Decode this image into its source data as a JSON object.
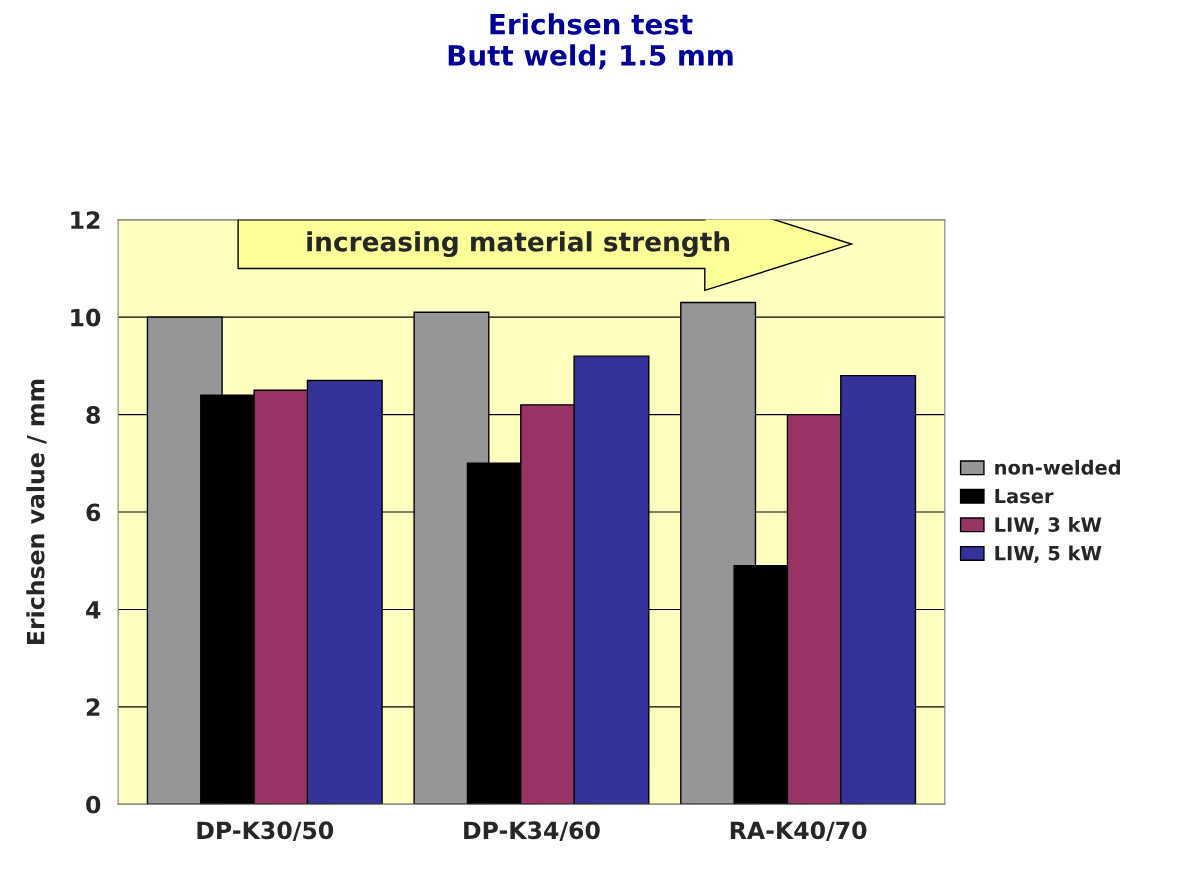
{
  "chart_data": {
    "type": "bar",
    "title": "Erichsen test\nButt weld; 1.5 mm",
    "ylabel": "Erichsen value / mm",
    "categories": [
      "DP-K30/50",
      "DP-K34/60",
      "RA-K40/70"
    ],
    "series": [
      {
        "name": "non-welded",
        "color": "#969696",
        "values": [
          10.0,
          10.1,
          10.3
        ]
      },
      {
        "name": "Laser",
        "color": "#000000",
        "values": [
          8.4,
          7.0,
          4.9
        ]
      },
      {
        "name": "LIW, 3 kW",
        "color": "#993366",
        "values": [
          8.5,
          8.2,
          8.0
        ]
      },
      {
        "name": "LIW, 5 kW",
        "color": "#333399",
        "values": [
          8.7,
          9.2,
          8.8
        ]
      }
    ],
    "ylim": [
      0,
      12
    ],
    "yticks": [
      0,
      2,
      4,
      6,
      8,
      10,
      12
    ],
    "grid": "y",
    "legend": "right",
    "annotations": [
      "increasing material strength"
    ]
  }
}
